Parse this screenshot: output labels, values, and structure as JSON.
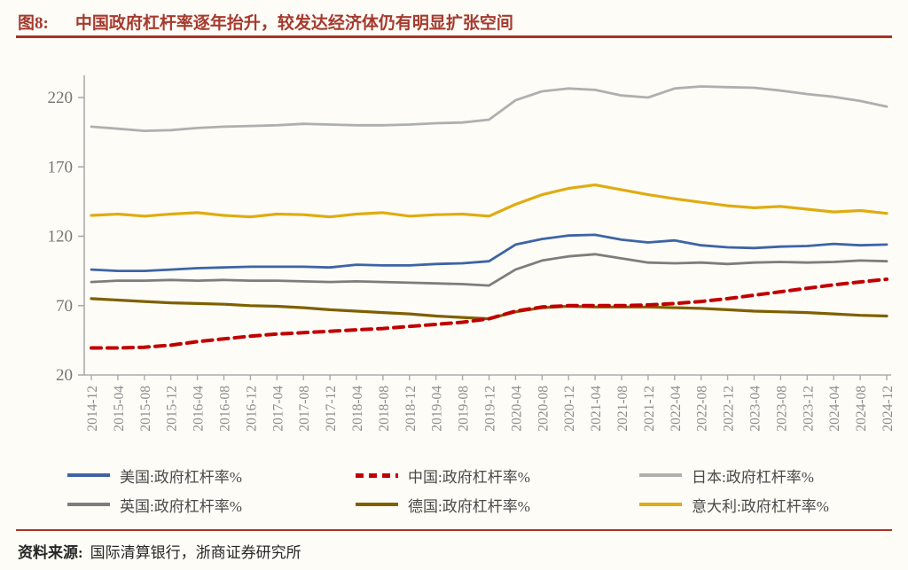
{
  "page": {
    "background": "#FDFCF7",
    "accent_rule_color": "#A93226"
  },
  "header": {
    "figure_label": "图8:",
    "title": "中国政府杠杆率逐年抬升，较发达经济体仍有明显扩张空间",
    "title_color": "#A63A2E"
  },
  "source": {
    "label": "资料来源:",
    "text": "国际清算银行，浙商证券研究所"
  },
  "chart_data": {
    "type": "line",
    "title": "",
    "xlabel": "",
    "ylabel": "",
    "ylim": [
      20,
      220
    ],
    "yticks": [
      20,
      70,
      120,
      170,
      220
    ],
    "grid": false,
    "legend_position": "bottom",
    "axis_color": "#ABABAB",
    "ytick_label_color": "#757575",
    "xtick_label_color": "#8C8C8C",
    "x_labels": [
      "2014-12",
      "2015-04",
      "2015-08",
      "2015-12",
      "2016-04",
      "2016-08",
      "2016-12",
      "2017-04",
      "2017-08",
      "2017-12",
      "2018-04",
      "2018-08",
      "2018-12",
      "2019-04",
      "2019-08",
      "2019-12",
      "2020-04",
      "2020-08",
      "2020-12",
      "2021-04",
      "2021-08",
      "2021-12",
      "2022-04",
      "2022-08",
      "2022-12",
      "2023-04",
      "2023-08",
      "2023-12",
      "2024-04",
      "2024-08",
      "2024-12"
    ],
    "series": [
      {
        "name": "美国:政府杠杆率%",
        "color": "#3D64A6",
        "dash": false,
        "width": 2.8,
        "values": [
          96,
          95,
          95,
          96,
          97,
          97.5,
          98,
          98,
          98,
          97.5,
          99.5,
          99,
          99,
          100,
          100.5,
          102,
          114,
          118,
          120.5,
          121,
          117.5,
          115.5,
          117,
          113.5,
          112,
          111.5,
          112.5,
          113,
          114.5,
          113.5,
          114
        ]
      },
      {
        "name": "中国:政府杠杆率%",
        "color": "#C00000",
        "dash": true,
        "width": 4,
        "values": [
          39.5,
          39.5,
          40,
          41.5,
          44,
          46,
          48,
          49.5,
          50.5,
          51.5,
          52.5,
          53.5,
          55,
          56.5,
          58,
          60.5,
          66,
          69,
          70,
          70,
          70,
          70.5,
          71.5,
          73,
          75,
          77.5,
          80,
          82.5,
          85,
          87,
          89
        ]
      },
      {
        "name": "日本:政府杠杆率%",
        "color": "#AFAFAF",
        "dash": false,
        "width": 2.8,
        "values": [
          199,
          197.5,
          196,
          196.5,
          198,
          199,
          199.5,
          200,
          201,
          200.5,
          200,
          200,
          200.5,
          201.5,
          202,
          204,
          218,
          224.5,
          226.5,
          225.5,
          221.5,
          220,
          226.5,
          228,
          227.5,
          227,
          225,
          222.5,
          220.5,
          217.5,
          213.5
        ]
      },
      {
        "name": "英国:政府杠杆率%",
        "color": "#7D7D7D",
        "dash": false,
        "width": 2.8,
        "values": [
          87,
          88,
          88,
          88.5,
          88,
          88.5,
          88,
          88,
          87.5,
          87,
          87.5,
          87,
          86.5,
          86,
          85.5,
          84.5,
          96,
          102.5,
          105.5,
          107,
          104,
          101,
          100.5,
          101,
          100,
          101,
          101.5,
          101,
          101.5,
          102.5,
          102
        ]
      },
      {
        "name": "德国:政府杠杆率%",
        "color": "#7E6000",
        "dash": false,
        "width": 3.2,
        "values": [
          75,
          74,
          73,
          72,
          71.5,
          71,
          70,
          69.5,
          68.5,
          67,
          66,
          65,
          64,
          62.5,
          61.5,
          60.5,
          65.5,
          68.5,
          69.5,
          69,
          69,
          69,
          68.5,
          68,
          67,
          66,
          65.5,
          65,
          64,
          63,
          62.5
        ]
      },
      {
        "name": "意大利:政府杠杆率%",
        "color": "#DFAC11",
        "dash": false,
        "width": 3.2,
        "values": [
          135,
          136,
          134.5,
          136,
          137,
          135,
          134,
          136,
          135.5,
          134,
          136,
          137,
          134.5,
          135.5,
          136,
          134.5,
          143,
          150,
          154.5,
          157,
          153.5,
          150,
          147,
          144.5,
          142,
          140.5,
          141.5,
          139.5,
          137.5,
          138.5,
          136.5
        ]
      }
    ],
    "draw_order": [
      2,
      5,
      3,
      0,
      4,
      1
    ],
    "legend_display_order": [
      0,
      1,
      2,
      3,
      4,
      5
    ]
  }
}
